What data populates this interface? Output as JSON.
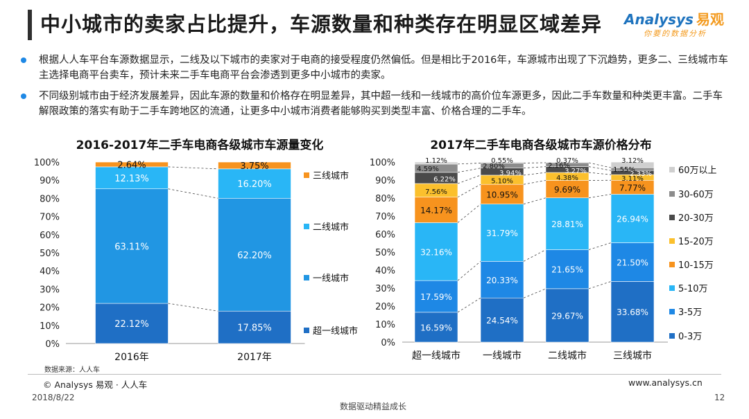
{
  "title": "中小城市的卖家占比提升，车源数量和种类存在明显区域差异",
  "logo": {
    "main": "Analysys",
    "cn": "易观",
    "sub": "你要的数据分析"
  },
  "bullets": [
    "根据人人车平台车源数据显示，二线及以下城市的卖家对于电商的接受程度仍然偏低。但是相比于2016年，车源城市出现了下沉趋势，更多二、三线城市车主选择电商平台卖车，预计未来二手车电商平台会渗透到更多中小城市的卖家。",
    "不同级别城市由于经济发展差异，因此车源的数量和价格存在明显差异，其中超一线和一线城市的高价位车源更多，因此二手车数量和种类更丰富。二手车解限政策的落实有助于二手车跨地区的流通，让更多中小城市消费者能够购买到类型丰富、价格合理的二手车。"
  ],
  "source": "数据来源：人人车",
  "footer": {
    "copyright": "© Analysys 易观 · 人人车",
    "website": "www.analysys.cn",
    "date": "2018/8/22",
    "page": "12",
    "slogan": "数据驱动精益成长"
  },
  "chart_data": [
    {
      "type": "bar",
      "stacked": true,
      "percent": true,
      "title": "2016-2017年二手车电商各级城市车源量变化",
      "categories": [
        "2016年",
        "2017年"
      ],
      "ylim": [
        0,
        100
      ],
      "yticks": [
        "0%",
        "10%",
        "20%",
        "30%",
        "40%",
        "50%",
        "60%",
        "70%",
        "80%",
        "90%",
        "100%"
      ],
      "legend_position": "right",
      "series": [
        {
          "name": "超一线城市",
          "values": [
            22.12,
            17.85
          ],
          "labels": [
            "22.12%",
            "17.85%"
          ],
          "color": "#1f6fc5"
        },
        {
          "name": "一线城市",
          "values": [
            63.11,
            62.2
          ],
          "labels": [
            "63.11%",
            "62.20%"
          ],
          "color": "#2196e3"
        },
        {
          "name": "二线城市",
          "values": [
            12.13,
            16.2
          ],
          "labels": [
            "12.13%",
            "16.20%"
          ],
          "color": "#29b6f6"
        },
        {
          "name": "三线城市",
          "values": [
            2.64,
            3.75
          ],
          "labels": [
            "2.64%",
            "3.75%"
          ],
          "color": "#f7931e"
        }
      ]
    },
    {
      "type": "bar",
      "stacked": true,
      "percent": true,
      "title": "2017年二手车电商各级城市车源价格分布",
      "categories": [
        "超一线城市",
        "一线城市",
        "二线城市",
        "三线城市"
      ],
      "ylim": [
        0,
        100
      ],
      "yticks": [
        "0%",
        "10%",
        "20%",
        "30%",
        "40%",
        "50%",
        "60%",
        "70%",
        "80%",
        "90%",
        "100%"
      ],
      "legend_position": "right",
      "series": [
        {
          "name": "0-3万",
          "values": [
            16.59,
            24.54,
            29.67,
            33.68
          ],
          "labels": [
            "16.59%",
            "24.54%",
            "29.67%",
            "33.68%"
          ],
          "color": "#1f6fc5"
        },
        {
          "name": "3-5万",
          "values": [
            17.59,
            20.33,
            21.65,
            21.5
          ],
          "labels": [
            "17.59%",
            "20.33%",
            "21.65%",
            "21.50%"
          ],
          "color": "#1e88e5"
        },
        {
          "name": "5-10万",
          "values": [
            32.16,
            31.79,
            28.81,
            26.94
          ],
          "labels": [
            "32.16%",
            "31.79%",
            "28.81%",
            "26.94%"
          ],
          "color": "#29b6f6"
        },
        {
          "name": "10-15万",
          "values": [
            14.17,
            10.95,
            9.69,
            7.77
          ],
          "labels": [
            "14.17%",
            "10.95%",
            "9.69%",
            "7.77%"
          ],
          "color": "#f7931e"
        },
        {
          "name": "15-20万",
          "values": [
            7.56,
            5.1,
            4.38,
            3.11
          ],
          "labels": [
            "7.56%",
            "5.10%",
            "4.38%",
            "3.11%"
          ],
          "color": "#fbc02d"
        },
        {
          "name": "20-30万",
          "values": [
            6.22,
            3.94,
            3.27,
            2.33
          ],
          "labels": [
            "6.22%",
            "3.94%",
            "3.27%",
            "2.33%"
          ],
          "color": "#4a4a4a"
        },
        {
          "name": "30-60万",
          "values": [
            4.59,
            2.8,
            2.16,
            1.55
          ],
          "labels": [
            "4.59%",
            "2.80%",
            "2.16%",
            "1.55%"
          ],
          "color": "#8c8c8c"
        },
        {
          "name": "60万以上",
          "values": [
            1.12,
            0.55,
            0.37,
            3.12
          ],
          "labels": [
            "1.12%",
            "0.55%",
            "0.37%",
            "3.12%"
          ],
          "color": "#cfcfcf"
        }
      ]
    }
  ]
}
